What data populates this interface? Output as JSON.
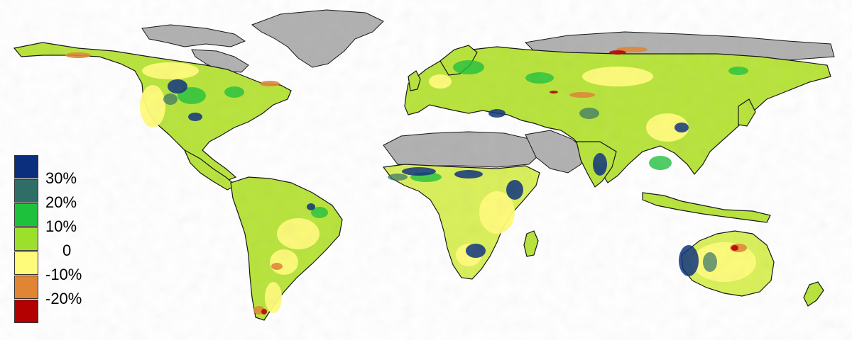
{
  "map": {
    "colors": {
      "ocean": "#ffffff",
      "no_data": "#b0b0b0",
      "coast": "#000000"
    }
  },
  "legend": {
    "ticks": [
      "30%",
      "20%",
      "10%",
      "0",
      "-10%",
      "-20%"
    ],
    "swatches": [
      {
        "color": "#0b2f7c"
      },
      {
        "color": "#2f6e66"
      },
      {
        "color": "#1ec13c"
      },
      {
        "color": "#9be12c"
      },
      {
        "color": "#fffb7a"
      },
      {
        "color": "#df8533"
      },
      {
        "color": "#b30000"
      }
    ]
  }
}
